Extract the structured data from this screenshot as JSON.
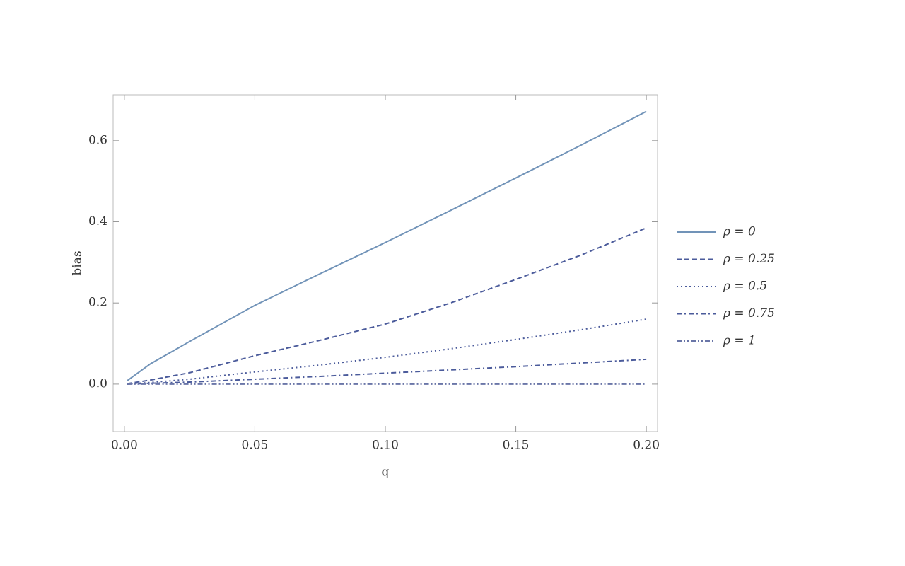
{
  "chart_data": {
    "type": "line",
    "x_label": "q",
    "y_label": "bias",
    "x": [
      0.001,
      0.01,
      0.025,
      0.05,
      0.075,
      0.1,
      0.125,
      0.15,
      0.175,
      0.2
    ],
    "series": [
      {
        "name": "ρ = 0",
        "color": "#7193b8",
        "style": "solid",
        "values": [
          0.008,
          0.05,
          0.105,
          0.194,
          0.272,
          0.349,
          0.428,
          0.508,
          0.589,
          0.672
        ]
      },
      {
        "name": "ρ = 0.25",
        "color": "#4b5b9b",
        "style": "dashed",
        "values": [
          0.001,
          0.01,
          0.028,
          0.07,
          0.108,
          0.148,
          0.2,
          0.258,
          0.318,
          0.385
        ]
      },
      {
        "name": "ρ = 0.5",
        "color": "#4b5b9b",
        "style": "dotted",
        "values": [
          0,
          0.004,
          0.012,
          0.03,
          0.047,
          0.066,
          0.087,
          0.11,
          0.134,
          0.16
        ]
      },
      {
        "name": "ρ = 0.75",
        "color": "#4b5b9b",
        "style": "dashdot",
        "values": [
          0,
          0.002,
          0.005,
          0.012,
          0.019,
          0.027,
          0.035,
          0.043,
          0.052,
          0.061
        ]
      },
      {
        "name": "ρ = 1",
        "color": "#6a76a8",
        "style": "dashdotdot",
        "values": [
          0,
          0,
          0,
          0,
          0,
          0,
          0,
          0,
          0,
          0
        ]
      }
    ],
    "xlim": [
      -0.0043,
      0.2043
    ],
    "ylim": [
      -0.117,
      0.713
    ],
    "xticks": [
      {
        "value": 0,
        "label": "0.00"
      },
      {
        "value": 0.05,
        "label": "0.05"
      },
      {
        "value": 0.1,
        "label": "0.10"
      },
      {
        "value": 0.15,
        "label": "0.15"
      },
      {
        "value": 0.2,
        "label": "0.20"
      }
    ],
    "yticks": [
      {
        "value": 0,
        "label": "0.0"
      },
      0.2,
      0.4,
      0.6
    ],
    "legend": "right"
  }
}
